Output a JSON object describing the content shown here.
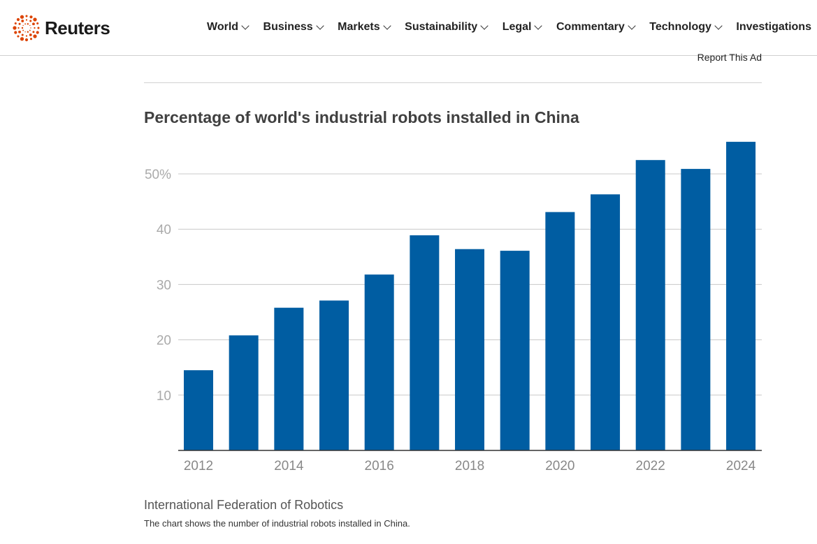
{
  "header": {
    "logo_text": "Reuters",
    "brand_color": "#dc4300",
    "nav": [
      {
        "label": "World",
        "has_dropdown": true
      },
      {
        "label": "Business",
        "has_dropdown": true
      },
      {
        "label": "Markets",
        "has_dropdown": true
      },
      {
        "label": "Sustainability",
        "has_dropdown": true
      },
      {
        "label": "Legal",
        "has_dropdown": true
      },
      {
        "label": "Commentary",
        "has_dropdown": true
      },
      {
        "label": "Technology",
        "has_dropdown": true
      },
      {
        "label": "Investigations",
        "has_dropdown": false
      }
    ]
  },
  "ad": {
    "report_label": "Report This Ad"
  },
  "chart_data": {
    "type": "bar",
    "title": "Percentage of world's industrial robots installed in China",
    "categories": [
      "2012",
      "2013",
      "2014",
      "2015",
      "2016",
      "2017",
      "2018",
      "2019",
      "2020",
      "2021",
      "2022",
      "2023",
      "2024"
    ],
    "values": [
      14.5,
      20.8,
      25.8,
      27.1,
      31.8,
      38.9,
      36.4,
      36.1,
      43.1,
      46.3,
      52.5,
      50.9,
      55.8
    ],
    "x_tick_labels": [
      "2012",
      "2014",
      "2016",
      "2018",
      "2020",
      "2022",
      "2024"
    ],
    "y_ticks": [
      10,
      20,
      30,
      40,
      50
    ],
    "y_tick_labels": [
      "10",
      "20",
      "30",
      "40",
      "50%"
    ],
    "ylim": [
      0,
      57
    ],
    "grid": true,
    "bar_color": "#005da2",
    "xlabel": "",
    "ylabel": ""
  },
  "footer": {
    "source": "International Federation of Robotics",
    "note": "The chart shows the number of industrial robots installed in China."
  }
}
